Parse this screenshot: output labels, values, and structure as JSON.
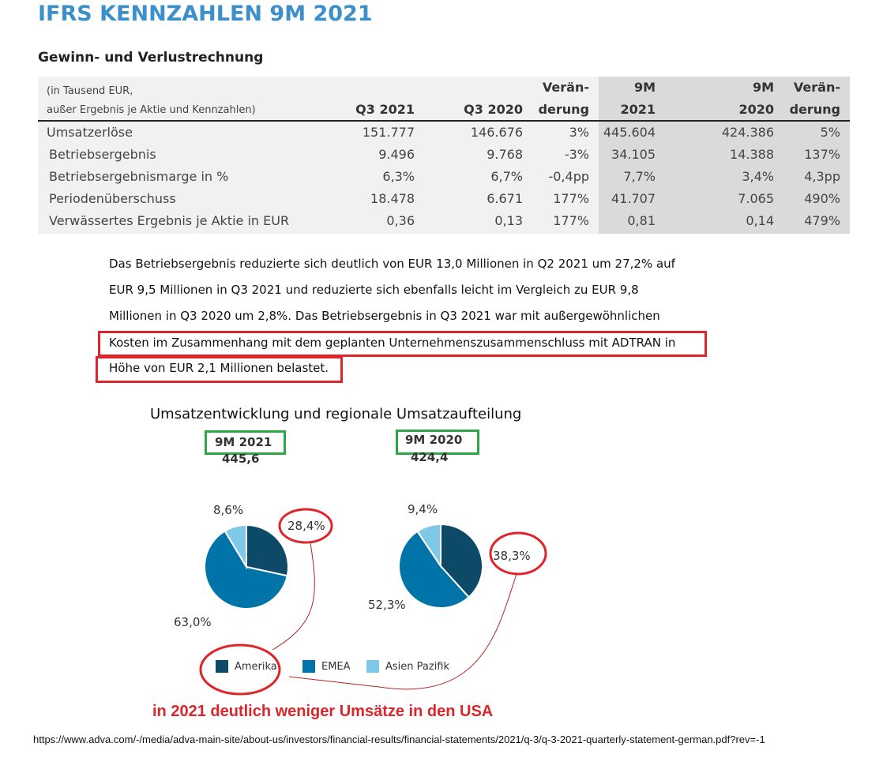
{
  "title": "IFRS KENNZAHLEN 9M 2021",
  "subtitle": "Gewinn- und Verlustrechnung",
  "table": {
    "header_note_1": "(in Tausend EUR,",
    "header_note_2": "außer Ergebnis je Aktie und Kennzahlen)",
    "columns": [
      {
        "l1": "",
        "l2": "Q3 2021"
      },
      {
        "l1": "",
        "l2": "Q3 2020"
      },
      {
        "l1": "Verän-",
        "l2": "derung"
      },
      {
        "l1": "9M",
        "l2": "2021"
      },
      {
        "l1": "9M",
        "l2": "2020"
      },
      {
        "l1": "Verän-",
        "l2": "derung"
      }
    ],
    "rows": [
      {
        "label": "Umsatzerlöse",
        "values": [
          "151.777",
          "146.676",
          "3%",
          "445.604",
          "424.386",
          "5%"
        ]
      },
      {
        "label": "Betriebsergebnis",
        "values": [
          "9.496",
          "9.768",
          "-3%",
          "34.105",
          "14.388",
          "137%"
        ]
      },
      {
        "label": "Betriebsergebnismarge in %",
        "values": [
          "6,3%",
          "6,7%",
          "-0,4pp",
          "7,7%",
          "3,4%",
          "4,3pp"
        ]
      },
      {
        "label": "Periodenüberschuss",
        "values": [
          "18.478",
          "6.671",
          "177%",
          "41.707",
          "7.065",
          "490%"
        ]
      },
      {
        "label": "Verwässertes Ergebnis je Aktie in EUR",
        "values": [
          "0,36",
          "0,13",
          "177%",
          "0,81",
          "0,14",
          "479%"
        ]
      }
    ]
  },
  "paragraph": [
    "Das Betriebsergebnis reduzierte sich deutlich von EUR 13,0 Millionen in Q2 2021 um 27,2% auf",
    "EUR 9,5 Millionen in Q3 2021 und reduzierte sich ebenfalls leicht im Vergleich zu EUR 9,8",
    "Millionen in Q3 2020 um 2,8%. Das Betriebsergebnis in Q3 2021 war mit außergewöhnlichen",
    "Kosten im Zusammenhang mit dem geplanten Unternehmenszusammenschluss mit ADTRAN in",
    "Höhe von EUR 2,1 Millionen belastet."
  ],
  "chart_data": {
    "type": "pie",
    "title": "Umsatzentwicklung und regionale Umsatzaufteilung",
    "legend": [
      "Amerika",
      "EMEA",
      "Asien Pazifik"
    ],
    "legend_placement": "bottom",
    "colors": [
      "#0d4a68",
      "#0073a8",
      "#80c8e8"
    ],
    "charts": [
      {
        "period": "9M 2021",
        "total": "445,6",
        "values": [
          28.4,
          63.0,
          8.6
        ],
        "labels": [
          "28,4%",
          "63,0%",
          "8,6%"
        ]
      },
      {
        "period": "9M 2020",
        "total": "424,4",
        "values": [
          38.3,
          52.3,
          9.4
        ],
        "labels": [
          "38,3%",
          "52,3%",
          "9,4%"
        ]
      }
    ]
  },
  "annotation": "in 2021 deutlich weniger Umsätze in den USA",
  "source_url": "https://www.adva.com/-/media/adva-main-site/about-us/investors/financial-results/financial-statements/2021/q-3/q-3-2021-quarterly-statement-german.pdf?rev=-1",
  "colors": {
    "title": "#3c8fc9",
    "annotation_red": "#e0242b",
    "highlight_green": "#2ea646"
  }
}
